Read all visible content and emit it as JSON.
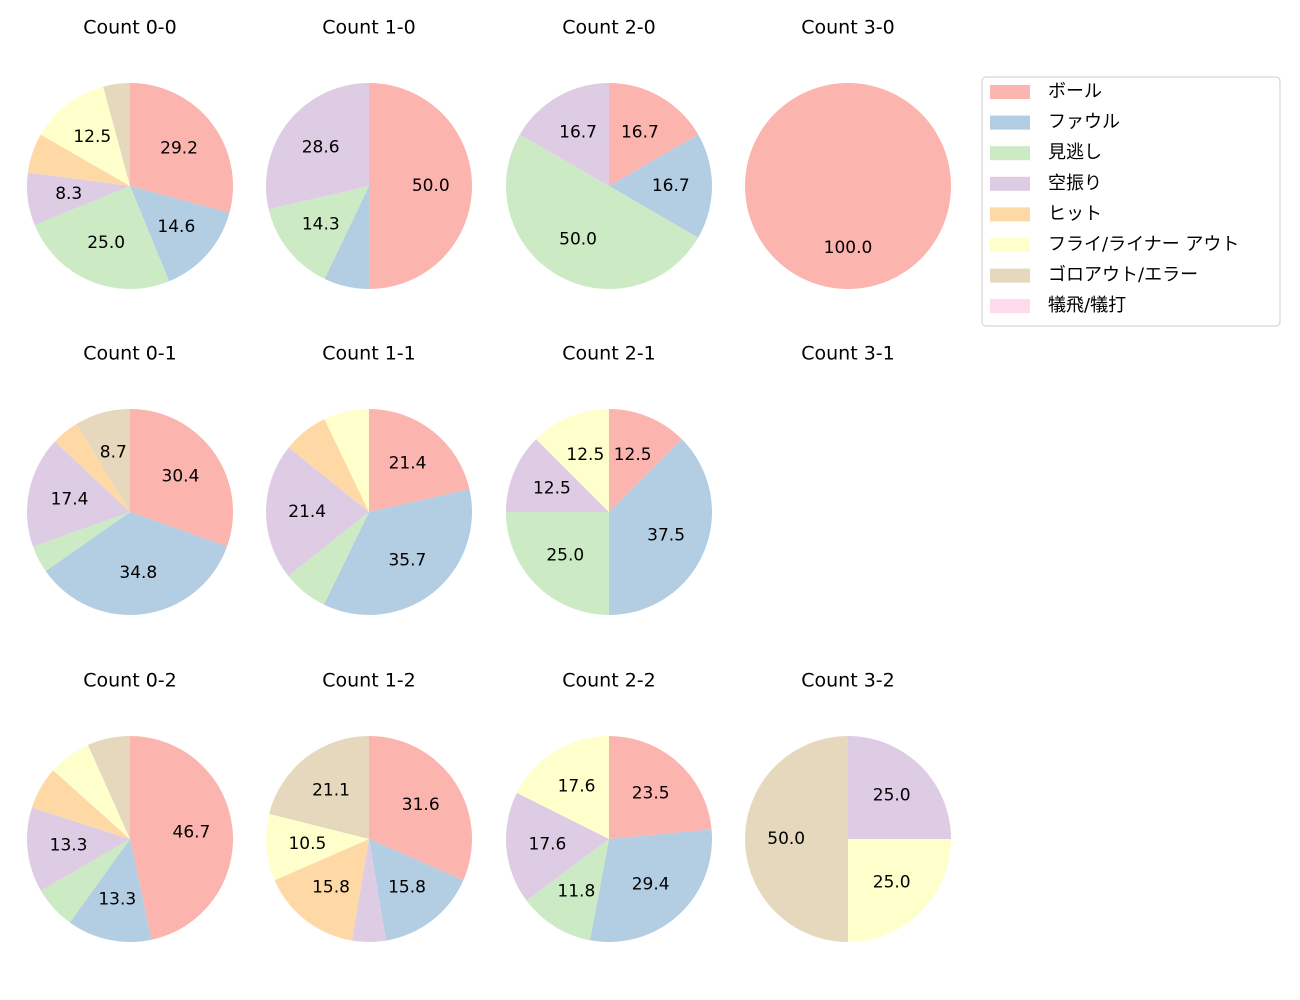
{
  "legend": {
    "labels": [
      "ボール",
      "ファウル",
      "見逃し",
      "空振り",
      "ヒット",
      "フライ/ライナー アウト",
      "ゴロアウト/エラー",
      "犠飛/犠打"
    ],
    "colors": [
      "#fbb4ae",
      "#b3cde3",
      "#ccebc5",
      "#decbe4",
      "#fed9a6",
      "#ffffcc",
      "#e5d8bd",
      "#fddaec"
    ]
  },
  "chart_data": [
    {
      "type": "pie",
      "title": "Count 0-0",
      "values": [
        29.2,
        14.6,
        25.0,
        8.3,
        6.2,
        12.5,
        4.2,
        0
      ],
      "value_labels": [
        "29.2",
        "14.6",
        "25.0",
        "8.3",
        null,
        "12.5",
        null,
        null
      ]
    },
    {
      "type": "pie",
      "title": "Count 1-0",
      "values": [
        50.0,
        7.1,
        14.3,
        28.6,
        0,
        0,
        0,
        0
      ],
      "value_labels": [
        "50.0",
        null,
        "14.3",
        "28.6",
        null,
        null,
        null,
        null
      ]
    },
    {
      "type": "pie",
      "title": "Count 2-0",
      "values": [
        16.7,
        16.7,
        50.0,
        16.7,
        0,
        0,
        0,
        0
      ],
      "value_labels": [
        "16.7",
        "16.7",
        "50.0",
        "16.7",
        null,
        null,
        null,
        null
      ]
    },
    {
      "type": "pie",
      "title": "Count 3-0",
      "values": [
        100.0,
        0,
        0,
        0,
        0,
        0,
        0,
        0
      ],
      "value_labels": [
        "100.0",
        null,
        null,
        null,
        null,
        null,
        null,
        null
      ]
    },
    {
      "type": "pie",
      "title": "Count 0-1",
      "values": [
        30.4,
        34.8,
        4.3,
        17.4,
        4.3,
        0,
        8.7,
        0
      ],
      "value_labels": [
        "30.4",
        "34.8",
        null,
        "17.4",
        null,
        null,
        "8.7",
        null
      ]
    },
    {
      "type": "pie",
      "title": "Count 1-1",
      "values": [
        21.4,
        35.7,
        7.1,
        21.4,
        7.1,
        7.1,
        0,
        0
      ],
      "value_labels": [
        "21.4",
        "35.7",
        null,
        "21.4",
        null,
        null,
        null,
        null
      ]
    },
    {
      "type": "pie",
      "title": "Count 2-1",
      "values": [
        12.5,
        37.5,
        25.0,
        12.5,
        0,
        12.5,
        0,
        0
      ],
      "value_labels": [
        "12.5",
        "37.5",
        "25.0",
        "12.5",
        null,
        "12.5",
        null,
        null
      ]
    },
    {
      "type": "pie",
      "title": "Count 3-1"
    },
    {
      "type": "pie",
      "title": "Count 0-2",
      "values": [
        46.7,
        13.3,
        6.7,
        13.3,
        6.7,
        6.7,
        6.7,
        0
      ],
      "value_labels": [
        "46.7",
        "13.3",
        null,
        "13.3",
        null,
        null,
        null,
        null
      ]
    },
    {
      "type": "pie",
      "title": "Count 1-2",
      "values": [
        31.6,
        15.8,
        0,
        5.3,
        15.8,
        10.5,
        21.1,
        0
      ],
      "value_labels": [
        "31.6",
        "15.8",
        null,
        null,
        "15.8",
        "10.5",
        "21.1",
        null
      ]
    },
    {
      "type": "pie",
      "title": "Count 2-2",
      "values": [
        23.5,
        29.4,
        11.8,
        17.6,
        0,
        17.6,
        0,
        0
      ],
      "value_labels": [
        "23.5",
        "29.4",
        "11.8",
        "17.6",
        null,
        "17.6",
        null,
        null
      ]
    },
    {
      "type": "pie",
      "title": "Count 3-2",
      "values": [
        0,
        0,
        0,
        25.0,
        0,
        25.0,
        50.0,
        0
      ],
      "value_labels": [
        null,
        null,
        null,
        "25.0",
        null,
        "25.0",
        "50.0",
        null
      ]
    }
  ]
}
